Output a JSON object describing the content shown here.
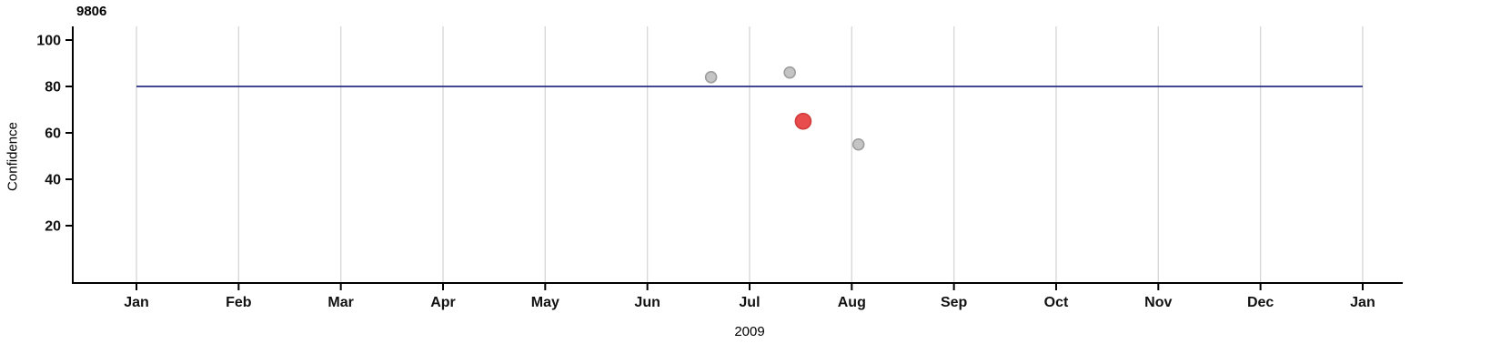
{
  "chart_data": {
    "type": "scatter",
    "title": "9806",
    "xlabel": "2009",
    "ylabel": "Confidence",
    "x_tick_labels": [
      "Jan",
      "Feb",
      "Mar",
      "Apr",
      "May",
      "Jun",
      "Jul",
      "Aug",
      "Sep",
      "Oct",
      "Nov",
      "Dec",
      "Jan"
    ],
    "y_ticks": [
      100,
      80,
      60,
      40,
      20
    ],
    "ylim": [
      0,
      105
    ],
    "grid": "vertical-only",
    "legend": "none",
    "reference_line_y": 80,
    "points": [
      {
        "date": "2009-06-20",
        "value": 84,
        "series": "other"
      },
      {
        "date": "2009-07-13",
        "value": 86,
        "series": "other"
      },
      {
        "date": "2009-07-17",
        "value": 65,
        "series": "selected"
      },
      {
        "date": "2009-08-03",
        "value": 55,
        "series": "other"
      }
    ],
    "colors": {
      "background": "#ffffff",
      "grid": "#d8d8d8",
      "axis": "#000000",
      "reference_line": "#2b2d82",
      "point_default_fill": "#c4c4c4",
      "point_default_stroke": "#9e9e9e",
      "point_selected_fill": "#e84c4c",
      "point_selected_stroke": "#d03a3a"
    }
  }
}
